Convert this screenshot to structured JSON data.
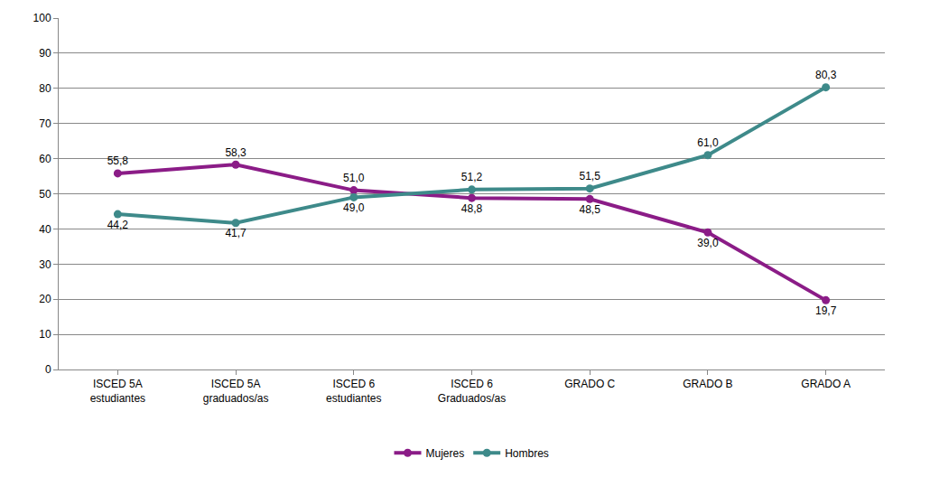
{
  "chart_data": {
    "type": "line",
    "categories": [
      "ISCED 5A estudiantes",
      "ISCED 5A graduados/as",
      "ISCED 6 estudiantes",
      "ISCED 6 Graduados/as",
      "GRADO C",
      "GRADO B",
      "GRADO A"
    ],
    "series": [
      {
        "name": "Mujeres",
        "color": "#8b1c87",
        "marker": "circle",
        "values": [
          55.8,
          58.3,
          51.0,
          48.8,
          48.5,
          39.0,
          19.7
        ],
        "value_labels": [
          "55,8",
          "58,3",
          "51,0",
          "48,8",
          "48,5",
          "39,0",
          "19,7"
        ]
      },
      {
        "name": "Hombres",
        "color": "#3e8a8a",
        "marker": "circle",
        "values": [
          44.2,
          41.7,
          49.0,
          51.2,
          51.5,
          61.0,
          80.3
        ],
        "value_labels": [
          "44,2",
          "41,7",
          "49,0",
          "51,2",
          "51,5",
          "61,0",
          "80,3"
        ]
      }
    ],
    "ylim": [
      0,
      100
    ],
    "yticks": [
      0,
      10,
      20,
      30,
      40,
      50,
      60,
      70,
      80,
      90,
      100
    ],
    "grid": true,
    "legend": "bottom",
    "data_labels": true
  }
}
